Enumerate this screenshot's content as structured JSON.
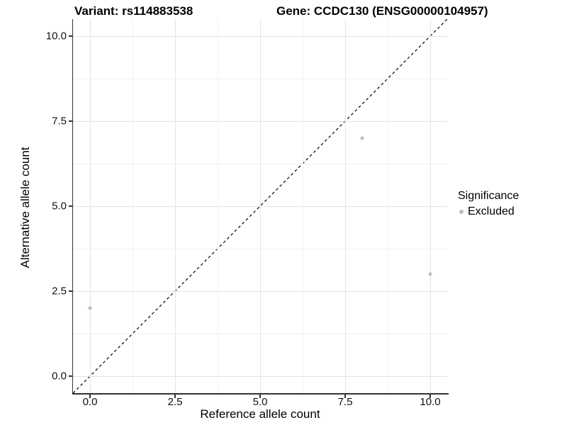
{
  "titles": {
    "left": "Variant: rs114883538",
    "right": "Gene: CCDC130 (ENSG00000104957)"
  },
  "chart_data": {
    "type": "scatter",
    "title": "Variant: rs114883538 | Gene: CCDC130 (ENSG00000104957)",
    "xlabel": "Reference allele count",
    "ylabel": "Alternative allele count",
    "xlim": [
      -0.5,
      10.5
    ],
    "ylim": [
      -0.5,
      10.5
    ],
    "x_major_ticks": [
      0,
      2.5,
      5,
      7.5,
      10
    ],
    "x_tick_labels": [
      "0.0",
      "2.5",
      "5.0",
      "7.5",
      "10.0"
    ],
    "y_major_ticks": [
      0,
      2.5,
      5,
      7.5,
      10
    ],
    "y_tick_labels": [
      "0.0",
      "2.5",
      "5.0",
      "7.5",
      "10.0"
    ],
    "x_minor_ticks": [
      1.25,
      3.75,
      6.25,
      8.75
    ],
    "y_minor_ticks": [
      1.25,
      3.75,
      6.25,
      8.75
    ],
    "grid": "on",
    "series": [
      {
        "name": "Excluded",
        "color": "#bdbdbd",
        "points": [
          [
            0,
            2
          ],
          [
            8,
            7
          ],
          [
            10,
            3
          ]
        ]
      }
    ],
    "reference_line": {
      "slope": 1,
      "intercept": 0,
      "style": "dashed",
      "color": "#000000"
    },
    "legend": {
      "title": "Significance",
      "position": "right",
      "items": [
        {
          "label": "Excluded",
          "color": "#bdbdbd"
        }
      ]
    }
  },
  "colors": {
    "background": "#ffffff",
    "grid_major": "#e4e4e4",
    "grid_minor": "#f1f1f1",
    "axis_line": "#333333",
    "tick_text": "#111111",
    "point": "#bdbdbd"
  }
}
